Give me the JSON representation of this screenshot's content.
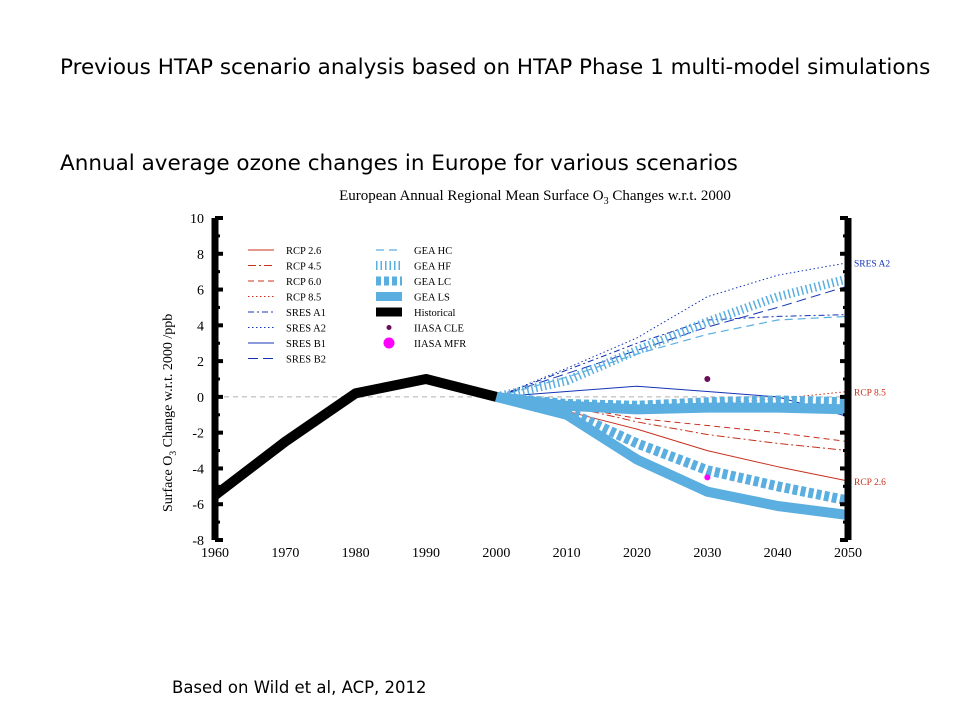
{
  "slide": {
    "heading_1": "Previous HTAP scenario analysis based on HTAP Phase 1 multi-model simulations",
    "heading_2": "Annual average ozone changes in Europe for various scenarios",
    "citation": "Based on Wild et al, ACP,  2012"
  },
  "chart_data": {
    "type": "line",
    "title": "European Annual Regional Mean Surface O",
    "title_subscript": "3",
    "title_suffix": " Changes w.r.t. 2000",
    "ylabel_prefix": "Surface O",
    "ylabel_subscript": "3",
    "ylabel_suffix": " Change w.r.t. 2000  /ppb",
    "xlabel": "",
    "xlim": [
      1960,
      2050
    ],
    "ylim": [
      -8,
      10
    ],
    "x_ticks": [
      1960,
      1970,
      1980,
      1990,
      2000,
      2010,
      2020,
      2030,
      2040,
      2050
    ],
    "y_ticks": [
      -8,
      -6,
      -4,
      -2,
      0,
      2,
      4,
      6,
      8,
      10
    ],
    "zero_line": true,
    "legend_position": "top-left",
    "colors": {
      "red": "#c8301e",
      "blue": "#1434b4",
      "lightblue": "#5aaee0",
      "black": "#000000",
      "purple": "#6a0f57",
      "magenta": "#ff00ff"
    },
    "series": [
      {
        "name": "RCP 2.6",
        "style": "rcp26",
        "x": [
          2000,
          2010,
          2020,
          2030,
          2040,
          2050
        ],
        "y": [
          0,
          -0.8,
          -1.8,
          -3.0,
          -3.9,
          -4.7
        ]
      },
      {
        "name": "RCP 4.5",
        "style": "rcp45",
        "x": [
          2000,
          2010,
          2020,
          2030,
          2040,
          2050
        ],
        "y": [
          0,
          -0.5,
          -1.4,
          -2.1,
          -2.6,
          -3.0
        ]
      },
      {
        "name": "RCP 6.0",
        "style": "rcp60",
        "x": [
          2000,
          2010,
          2020,
          2030,
          2040,
          2050
        ],
        "y": [
          0,
          -0.5,
          -1.2,
          -1.6,
          -2.0,
          -2.5
        ]
      },
      {
        "name": "RCP 8.5",
        "style": "rcp85",
        "x": [
          2000,
          2010,
          2020,
          2030,
          2040,
          2050
        ],
        "y": [
          0,
          -0.3,
          -0.6,
          -0.4,
          -0.1,
          0.3
        ]
      },
      {
        "name": "SRES A1",
        "style": "a1",
        "x": [
          2000,
          2010,
          2020,
          2030,
          2040,
          2050
        ],
        "y": [
          0,
          1.5,
          3.0,
          4.3,
          4.5,
          4.6
        ]
      },
      {
        "name": "SRES A2",
        "style": "a2",
        "x": [
          2000,
          2010,
          2020,
          2030,
          2040,
          2050
        ],
        "y": [
          0,
          1.6,
          3.3,
          5.6,
          6.8,
          7.5
        ]
      },
      {
        "name": "SRES B1",
        "style": "b1",
        "x": [
          2000,
          2010,
          2020,
          2030,
          2040,
          2050
        ],
        "y": [
          0,
          0.3,
          0.6,
          0.3,
          0.0,
          -1.1
        ]
      },
      {
        "name": "SRES B2",
        "style": "b2",
        "x": [
          2000,
          2010,
          2020,
          2030,
          2040,
          2050
        ],
        "y": [
          0,
          1.3,
          2.6,
          3.9,
          5.0,
          6.2
        ]
      },
      {
        "name": "GEA HC",
        "style": "geahc",
        "x": [
          2000,
          2010,
          2020,
          2030,
          2040,
          2050
        ],
        "y": [
          0,
          1.1,
          2.4,
          3.5,
          4.3,
          4.5
        ]
      },
      {
        "name": "GEA HF",
        "style": "geahf",
        "x": [
          2000,
          2010,
          2020,
          2030,
          2040,
          2050
        ],
        "y": [
          0,
          0.9,
          2.6,
          4.2,
          5.6,
          6.6
        ]
      },
      {
        "name": "GEA LC",
        "style": "gealc",
        "x": [
          2000,
          2010,
          2020,
          2030,
          2040,
          2050
        ],
        "y": [
          0,
          -0.8,
          -2.6,
          -4.1,
          -5.0,
          -5.8
        ]
      },
      {
        "name": "GEA LS",
        "style": "geals",
        "x": [
          2000,
          2010,
          2020,
          2030,
          2040,
          2050
        ],
        "y": [
          0,
          -1.0,
          -3.5,
          -5.3,
          -6.1,
          -6.6
        ]
      },
      {
        "name": "GEA LS",
        "style": "geals",
        "x": [
          2000,
          2010,
          2020,
          2030,
          2040,
          2050
        ],
        "y": [
          0,
          -0.5,
          -0.7,
          -0.6,
          -0.6,
          -0.7
        ]
      },
      {
        "name": "GEA LC",
        "style": "gealc",
        "x": [
          2000,
          2010,
          2020,
          2030,
          2040,
          2050
        ],
        "y": [
          0,
          -0.4,
          -0.5,
          -0.3,
          -0.2,
          -0.3
        ]
      },
      {
        "name": "Historical",
        "style": "hist",
        "x": [
          1960,
          1970,
          1980,
          1990,
          2000
        ],
        "y": [
          -5.5,
          -2.5,
          0.2,
          1.0,
          0.0
        ]
      }
    ],
    "points": [
      {
        "name": "IIASA CLE",
        "style": "cle",
        "x": 2030,
        "y": 1.0
      },
      {
        "name": "IIASA MFR",
        "style": "mfr",
        "x": 2030,
        "y": -4.5
      }
    ],
    "end_labels": [
      {
        "text": "SRES A2",
        "y": 7.5,
        "color": "#1434b4"
      },
      {
        "text": "RCP 8.5",
        "y": 0.3,
        "color": "#c8301e"
      },
      {
        "text": "RCP 2.6",
        "y": -4.7,
        "color": "#c8301e"
      }
    ]
  }
}
